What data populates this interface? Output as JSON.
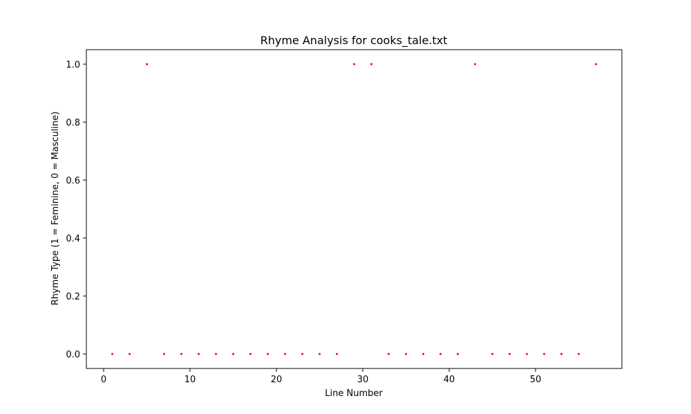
{
  "chart_data": {
    "type": "scatter",
    "title": "Rhyme Analysis for cooks_tale.txt",
    "xlabel": "Line Number",
    "ylabel": "Rhyme Type (1 = Feminine, 0 = Masculine)",
    "xlim": [
      -2,
      60
    ],
    "ylim": [
      -0.05,
      1.05
    ],
    "xticks": [
      0,
      10,
      20,
      30,
      40,
      50
    ],
    "xtick_labels": [
      "0",
      "10",
      "20",
      "30",
      "40",
      "50"
    ],
    "yticks": [
      0,
      0.2,
      0.4,
      0.6,
      0.8,
      1.0
    ],
    "ytick_labels": [
      "0.0",
      "0.2",
      "0.4",
      "0.6",
      "0.8",
      "1.0"
    ],
    "grid": false,
    "marker_color": "#ff0000",
    "x": [
      1,
      3,
      5,
      7,
      9,
      11,
      13,
      15,
      17,
      19,
      21,
      23,
      25,
      27,
      29,
      31,
      33,
      35,
      37,
      39,
      41,
      43,
      45,
      47,
      49,
      51,
      53,
      55,
      57
    ],
    "y": [
      0,
      0,
      1,
      0,
      0,
      0,
      0,
      0,
      0,
      0,
      0,
      0,
      0,
      0,
      1,
      1,
      0,
      0,
      0,
      0,
      0,
      1,
      0,
      0,
      0,
      0,
      0,
      0,
      1
    ]
  }
}
